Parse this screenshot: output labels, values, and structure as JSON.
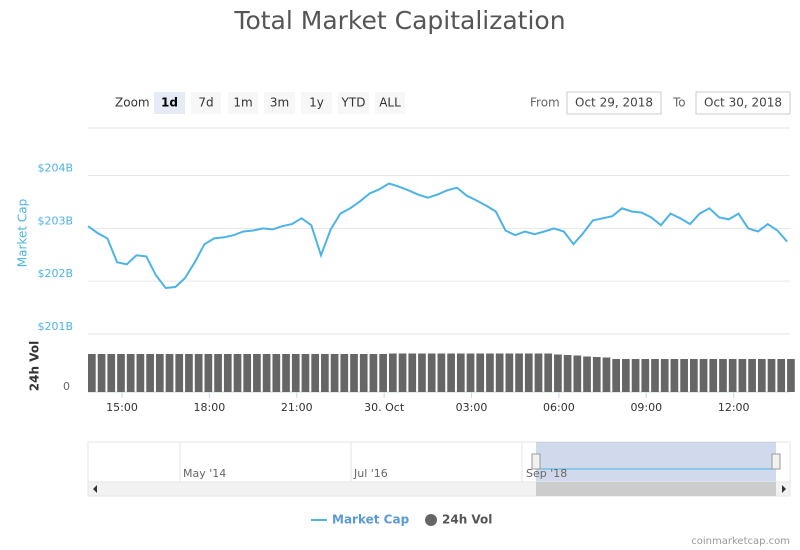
{
  "chart_data": {
    "type": "line",
    "title": "Total Market Capitalization",
    "x": [
      "2018-10-29T13:50",
      "2018-10-29T14:10",
      "2018-10-29T14:30",
      "2018-10-29T14:50",
      "2018-10-29T15:10",
      "2018-10-29T15:30",
      "2018-10-29T15:50",
      "2018-10-29T16:10",
      "2018-10-29T16:30",
      "2018-10-29T16:50",
      "2018-10-29T17:10",
      "2018-10-29T17:30",
      "2018-10-29T17:50",
      "2018-10-29T18:10",
      "2018-10-29T18:30",
      "2018-10-29T18:50",
      "2018-10-29T19:10",
      "2018-10-29T19:30",
      "2018-10-29T19:50",
      "2018-10-29T20:10",
      "2018-10-29T20:30",
      "2018-10-29T20:50",
      "2018-10-29T21:10",
      "2018-10-29T21:30",
      "2018-10-29T21:50",
      "2018-10-29T22:10",
      "2018-10-29T22:30",
      "2018-10-29T22:50",
      "2018-10-29T23:10",
      "2018-10-29T23:30",
      "2018-10-29T23:50",
      "2018-10-30T00:10",
      "2018-10-30T00:30",
      "2018-10-30T00:50",
      "2018-10-30T01:10",
      "2018-10-30T01:30",
      "2018-10-30T01:50",
      "2018-10-30T02:10",
      "2018-10-30T02:30",
      "2018-10-30T02:50",
      "2018-10-30T03:10",
      "2018-10-30T03:30",
      "2018-10-30T03:50",
      "2018-10-30T04:10",
      "2018-10-30T04:30",
      "2018-10-30T04:50",
      "2018-10-30T05:10",
      "2018-10-30T05:30",
      "2018-10-30T05:50",
      "2018-10-30T06:10",
      "2018-10-30T06:30",
      "2018-10-30T06:50",
      "2018-10-30T07:10",
      "2018-10-30T07:30",
      "2018-10-30T07:50",
      "2018-10-30T08:10",
      "2018-10-30T08:30",
      "2018-10-30T08:50",
      "2018-10-30T09:10",
      "2018-10-30T09:30",
      "2018-10-30T09:50",
      "2018-10-30T10:10",
      "2018-10-30T10:30",
      "2018-10-30T10:50",
      "2018-10-30T11:10",
      "2018-10-30T11:30",
      "2018-10-30T11:50",
      "2018-10-30T12:10",
      "2018-10-30T12:30",
      "2018-10-30T12:50",
      "2018-10-30T13:10",
      "2018-10-30T13:30",
      "2018-10-30T13:50"
    ],
    "series": [
      {
        "name": "Market Cap",
        "type": "line",
        "color": "#4db3e6",
        "values": [
          203.04,
          202.91,
          202.81,
          202.36,
          202.32,
          202.49,
          202.47,
          202.11,
          201.87,
          201.89,
          202.06,
          202.36,
          202.7,
          202.81,
          202.83,
          202.87,
          202.94,
          202.96,
          203.0,
          202.98,
          203.04,
          203.08,
          203.19,
          203.06,
          202.49,
          202.98,
          203.28,
          203.38,
          203.51,
          203.66,
          203.74,
          203.85,
          203.79,
          203.72,
          203.64,
          203.58,
          203.64,
          203.72,
          203.77,
          203.62,
          203.53,
          203.43,
          203.32,
          202.96,
          202.87,
          202.94,
          202.89,
          202.94,
          203.0,
          202.94,
          202.7,
          202.91,
          203.15,
          203.19,
          203.23,
          203.38,
          203.32,
          203.3,
          203.21,
          203.06,
          203.28,
          203.19,
          203.08,
          203.28,
          203.38,
          203.21,
          203.17,
          203.28,
          203.0,
          202.94,
          203.08,
          202.96,
          202.75
        ]
      },
      {
        "name": "24h Vol",
        "type": "bar",
        "axis": "y2",
        "color": "#666666",
        "values": [
          38,
          38,
          38,
          38,
          38,
          38,
          38,
          38,
          38,
          38,
          38,
          38,
          38,
          38,
          38,
          38,
          38,
          38,
          38,
          38,
          38,
          38,
          38,
          38,
          38,
          38,
          38,
          38,
          38,
          38,
          38,
          38.5,
          38.5,
          38.5,
          38.5,
          38.5,
          38.5,
          38.5,
          38.5,
          38.5,
          38.5,
          38.5,
          38.5,
          38.5,
          38.5,
          38.5,
          38.5,
          38.5,
          37.5,
          37,
          36.5,
          35.5,
          35,
          34.5,
          33,
          33,
          33,
          33,
          33,
          33,
          33,
          33,
          33,
          33,
          33,
          33,
          33,
          33,
          33,
          33,
          33,
          33,
          33
        ]
      }
    ],
    "xlim": [
      "2018-10-29T13:50",
      "2018-10-30T13:56"
    ],
    "xticks": [
      {
        "value": "2018-10-29T15:00",
        "label": "15:00"
      },
      {
        "value": "2018-10-29T18:00",
        "label": "18:00"
      },
      {
        "value": "2018-10-29T21:00",
        "label": "21:00"
      },
      {
        "value": "2018-10-30T00:00",
        "label": "30. Oct"
      },
      {
        "value": "2018-10-30T03:00",
        "label": "03:00"
      },
      {
        "value": "2018-10-30T06:00",
        "label": "06:00"
      },
      {
        "value": "2018-10-30T09:00",
        "label": "09:00"
      },
      {
        "value": "2018-10-30T12:00",
        "label": "12:00"
      }
    ],
    "ylim": [
      201,
      204.9
    ],
    "yticks": [
      {
        "value": 201,
        "label": "$201B"
      },
      {
        "value": 202,
        "label": "$202B"
      },
      {
        "value": 203,
        "label": "$203B"
      },
      {
        "value": 204,
        "label": "$204B"
      }
    ],
    "ylabel": "Market Cap",
    "y2lim": [
      0,
      52
    ],
    "y2ticks": [
      0
    ],
    "y2label": "24h Vol",
    "grid": true,
    "legend": "bottom"
  },
  "ui": {
    "zoom_label": "Zoom",
    "zoom_buttons": [
      "1d",
      "7d",
      "1m",
      "3m",
      "1y",
      "YTD",
      "ALL"
    ],
    "selected": "1d",
    "from_label": "From",
    "from_date": "Oct 29, 2018",
    "to_label": "To",
    "to_date": "Oct 30, 2018"
  },
  "navigator": {
    "labels": [
      "May '14",
      "Jul '16",
      "Sep '18"
    ]
  },
  "credit": "coinmarketcap.com"
}
